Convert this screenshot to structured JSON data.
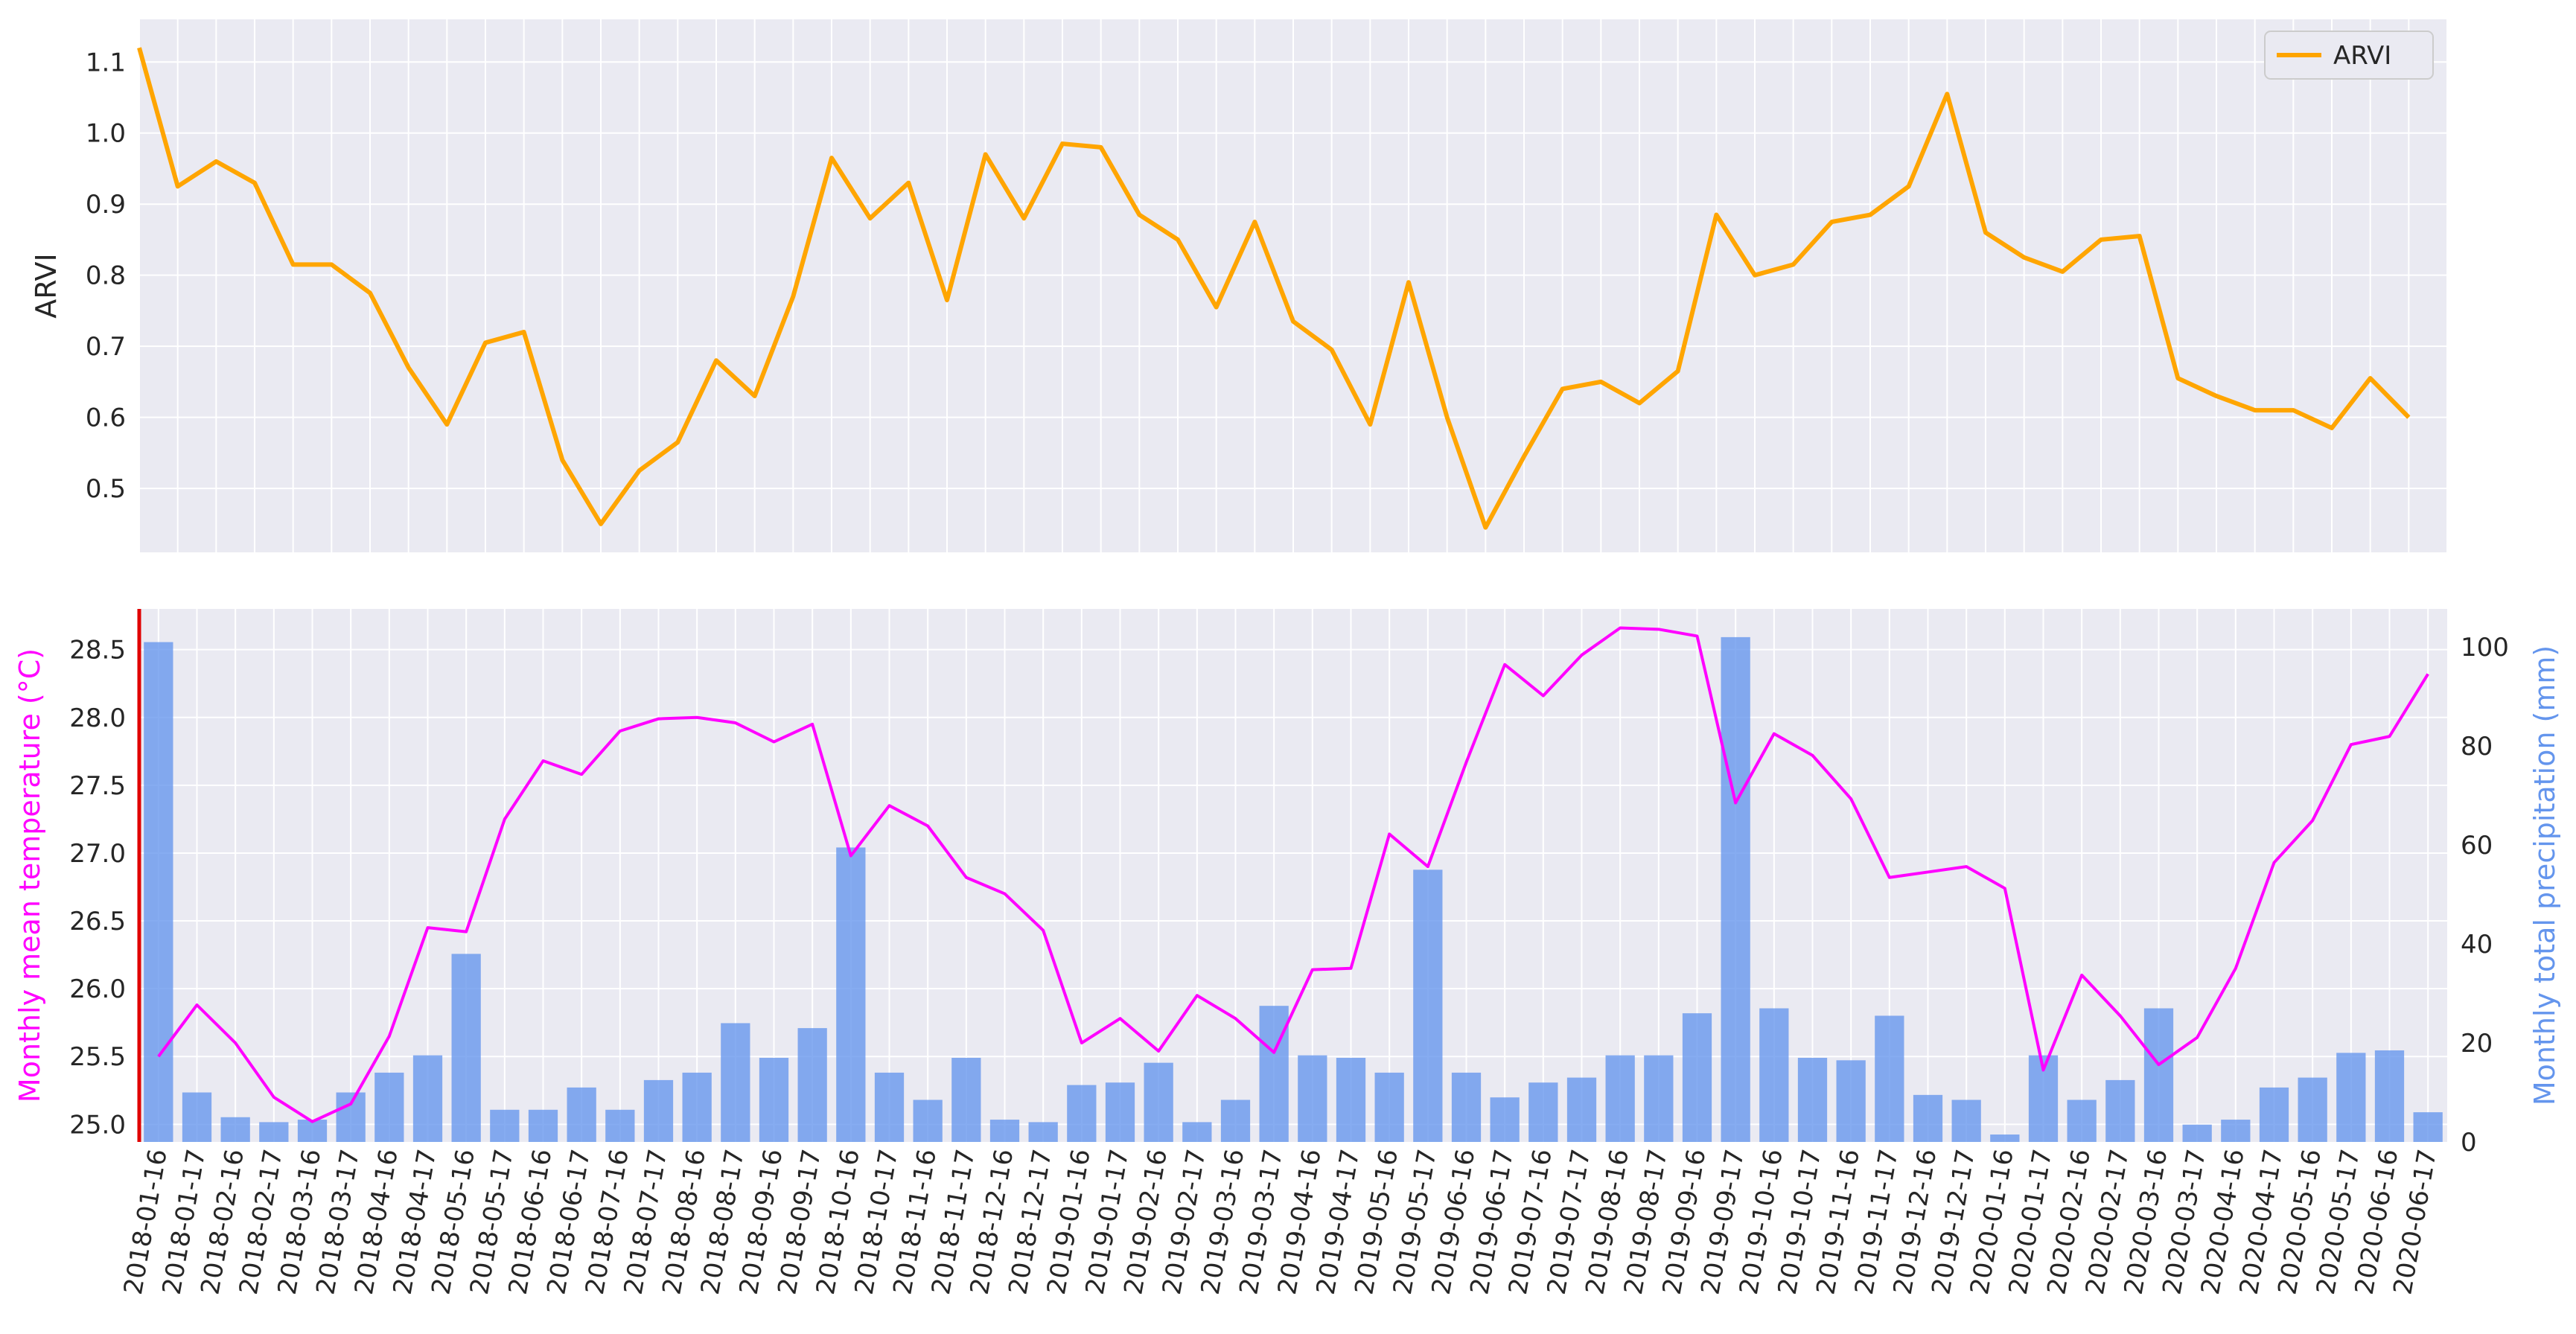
{
  "chart_data": [
    {
      "type": "line",
      "ylabel": "ARVI",
      "ylim": [
        0.41,
        1.16
      ],
      "yticks": [
        0.5,
        0.6,
        0.7,
        0.8,
        0.9,
        1.0,
        1.1
      ],
      "yticklabels": [
        "0.5",
        "0.6",
        "0.7",
        "0.8",
        "0.9",
        "1.0",
        "1.1"
      ],
      "grid": true,
      "legend": {
        "placement": "top-right"
      },
      "series": [
        {
          "name": "ARVI",
          "color": "#FFA500",
          "values": [
            1.12,
            0.925,
            0.96,
            0.93,
            0.815,
            0.815,
            0.775,
            0.67,
            0.59,
            0.705,
            0.72,
            0.54,
            0.45,
            0.525,
            0.565,
            0.68,
            0.63,
            0.77,
            0.965,
            0.88,
            0.93,
            0.765,
            0.97,
            0.88,
            0.985,
            0.98,
            0.885,
            0.85,
            0.755,
            0.875,
            0.735,
            0.695,
            0.59,
            0.79,
            0.6,
            0.445,
            0.545,
            0.64,
            0.65,
            0.62,
            0.665,
            0.885,
            0.8,
            0.815,
            0.875,
            0.885,
            0.925,
            1.055,
            0.86,
            0.825,
            0.805,
            0.85,
            0.855,
            0.655,
            0.63,
            0.61,
            0.61,
            0.585,
            0.655,
            0.6
          ]
        }
      ]
    },
    {
      "type": "bar+line",
      "x": [
        "2018-01-16",
        "2018-01-17",
        "2018-02-16",
        "2018-02-17",
        "2018-03-16",
        "2018-03-17",
        "2018-04-16",
        "2018-04-17",
        "2018-05-16",
        "2018-05-17",
        "2018-06-16",
        "2018-06-17",
        "2018-07-16",
        "2018-07-17",
        "2018-08-16",
        "2018-08-17",
        "2018-09-16",
        "2018-09-17",
        "2018-10-16",
        "2018-10-17",
        "2018-11-16",
        "2018-11-17",
        "2018-12-16",
        "2018-12-17",
        "2019-01-16",
        "2019-01-17",
        "2019-02-16",
        "2019-02-17",
        "2019-03-16",
        "2019-03-17",
        "2019-04-16",
        "2019-04-17",
        "2019-05-16",
        "2019-05-17",
        "2019-06-16",
        "2019-06-17",
        "2019-07-16",
        "2019-07-17",
        "2019-08-16",
        "2019-08-17",
        "2019-09-16",
        "2019-09-17",
        "2019-10-16",
        "2019-10-17",
        "2019-11-16",
        "2019-11-17",
        "2019-12-16",
        "2019-12-17",
        "2020-01-16",
        "2020-01-17",
        "2020-02-16",
        "2020-02-17",
        "2020-03-16",
        "2020-03-17",
        "2020-04-16",
        "2020-04-17",
        "2020-05-16",
        "2020-05-17",
        "2020-06-16",
        "2020-06-17"
      ],
      "ylabel_left": "Monthly mean temperature (°C)",
      "ylabel_right": "Monthly total precipitation (mm)",
      "ylim_left": [
        24.87,
        28.8
      ],
      "ylim_right": [
        0,
        107.7
      ],
      "yticks_left": [
        25.0,
        25.5,
        26.0,
        26.5,
        27.0,
        27.5,
        28.0,
        28.5
      ],
      "yticklabels_left": [
        "25.0",
        "25.5",
        "26.0",
        "26.5",
        "27.0",
        "27.5",
        "28.0",
        "28.5"
      ],
      "yticks_right": [
        0,
        20,
        40,
        60,
        80,
        100
      ],
      "yticklabels_right": [
        "0",
        "20",
        "40",
        "60",
        "80",
        "100"
      ],
      "grid": true,
      "series": [
        {
          "name": "Monthly total precipitation (mm)",
          "kind": "bar",
          "axis": "right",
          "color": "#6495ED",
          "values": [
            101,
            10,
            5,
            4,
            4.5,
            10,
            14,
            17.5,
            38,
            6.5,
            6.5,
            11,
            6.5,
            12.5,
            14,
            24,
            17,
            23,
            59.5,
            14,
            8.5,
            17,
            4.5,
            4,
            11.5,
            12,
            16,
            4,
            8.5,
            27.5,
            17.5,
            17,
            14,
            55,
            14,
            9,
            12,
            13,
            17.5,
            17.5,
            26,
            102,
            27,
            17,
            16.5,
            25.5,
            9.5,
            8.5,
            1.5,
            17.5,
            8.5,
            12.5,
            27,
            3.5,
            4.5,
            11,
            13,
            18,
            18.5,
            6
          ]
        },
        {
          "name": "Monthly mean temperature (°C)",
          "kind": "line",
          "axis": "left",
          "color": "#FF00FF",
          "values": [
            25.5,
            25.88,
            25.6,
            25.2,
            25.02,
            25.15,
            25.65,
            26.45,
            26.42,
            27.25,
            27.68,
            27.58,
            27.9,
            27.99,
            28.0,
            27.96,
            27.82,
            27.95,
            26.98,
            27.35,
            27.2,
            26.82,
            26.7,
            26.43,
            25.6,
            25.78,
            25.54,
            25.95,
            25.78,
            25.53,
            26.14,
            26.15,
            27.14,
            26.9,
            27.67,
            28.39,
            28.16,
            28.46,
            28.66,
            28.65,
            28.6,
            27.37,
            27.88,
            27.72,
            27.4,
            26.82,
            26.86,
            26.9,
            26.74,
            25.4,
            26.1,
            25.8,
            25.44,
            25.64,
            26.15,
            26.93,
            27.24,
            27.8,
            27.86,
            28.32
          ]
        }
      ]
    }
  ]
}
